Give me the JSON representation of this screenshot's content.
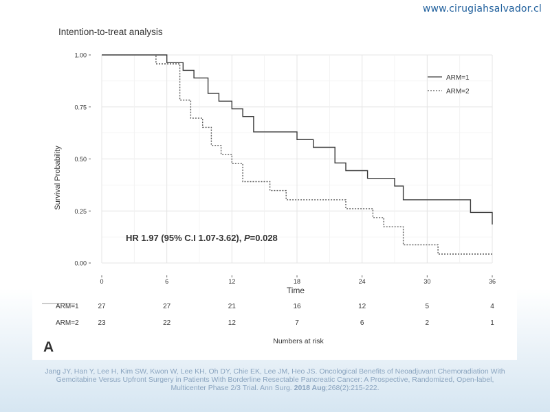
{
  "site_url": "www.cirugiahsalvador.cl",
  "panel_letter": "A",
  "citation": {
    "line1": "Jang JY, Han Y, Lee H, Kim SW, Kwon W, Lee KH, Oh DY, Chie EK, Lee JM, Heo JS. Oncological Benefits of Neoadjuvant Chemoradiation With",
    "line2": "Gemcitabine Versus Upfront Surgery in Patients With Borderline Resectable Pancreatic Cancer: A Prospective, Randomized, Open-label,",
    "line3_a": "Multicenter Phase 2/3 Trial. Ann Surg. ",
    "line3_bold": "2018  Aug",
    "line3_b": ";268(2):215-222."
  },
  "chart_data": {
    "type": "line",
    "title": "Intention-to-treat analysis",
    "xlabel": "Time",
    "ylabel": "Survival Probability",
    "xlim": [
      0,
      36
    ],
    "ylim": [
      0,
      1
    ],
    "x_ticks": [
      "0",
      "6",
      "12",
      "18",
      "24",
      "30",
      "36"
    ],
    "y_ticks": [
      "0.00",
      "0.25",
      "0.50",
      "0.75",
      "1.00"
    ],
    "grid": true,
    "legend_position": "top-right",
    "annotation": {
      "prefix": "HR 1.97 (95% C.I 1.07-3.62), ",
      "p_italic": "P",
      "suffix": "=0.028"
    },
    "series": [
      {
        "name": "ARM=1",
        "style": "solid",
        "color": "#3a3a3a",
        "points": [
          [
            0,
            1.0
          ],
          [
            6,
            1.0
          ],
          [
            6,
            0.963
          ],
          [
            7.5,
            0.963
          ],
          [
            7.5,
            0.926
          ],
          [
            8.5,
            0.926
          ],
          [
            8.5,
            0.889
          ],
          [
            9.8,
            0.889
          ],
          [
            9.8,
            0.815
          ],
          [
            10.8,
            0.815
          ],
          [
            10.8,
            0.778
          ],
          [
            12,
            0.778
          ],
          [
            12,
            0.741
          ],
          [
            13,
            0.741
          ],
          [
            13,
            0.704
          ],
          [
            14,
            0.704
          ],
          [
            14,
            0.63
          ],
          [
            18,
            0.63
          ],
          [
            18,
            0.593
          ],
          [
            19.5,
            0.593
          ],
          [
            19.5,
            0.556
          ],
          [
            21.5,
            0.556
          ],
          [
            21.5,
            0.481
          ],
          [
            22.5,
            0.481
          ],
          [
            22.5,
            0.444
          ],
          [
            24.5,
            0.444
          ],
          [
            24.5,
            0.407
          ],
          [
            27,
            0.407
          ],
          [
            27,
            0.37
          ],
          [
            27.8,
            0.37
          ],
          [
            27.8,
            0.304
          ],
          [
            34,
            0.304
          ],
          [
            34,
            0.243
          ],
          [
            36,
            0.243
          ],
          [
            36,
            0.185
          ]
        ]
      },
      {
        "name": "ARM=2",
        "style": "dashed",
        "color": "#5a5a5a",
        "points": [
          [
            0,
            1.0
          ],
          [
            5,
            1.0
          ],
          [
            5,
            0.957
          ],
          [
            7.2,
            0.957
          ],
          [
            7.2,
            0.783
          ],
          [
            8.2,
            0.783
          ],
          [
            8.2,
            0.696
          ],
          [
            9.3,
            0.696
          ],
          [
            9.3,
            0.652
          ],
          [
            10.1,
            0.652
          ],
          [
            10.1,
            0.565
          ],
          [
            11,
            0.565
          ],
          [
            11,
            0.522
          ],
          [
            12,
            0.522
          ],
          [
            12,
            0.478
          ],
          [
            13,
            0.478
          ],
          [
            13,
            0.391
          ],
          [
            15.5,
            0.391
          ],
          [
            15.5,
            0.348
          ],
          [
            17,
            0.348
          ],
          [
            17,
            0.304
          ],
          [
            22.5,
            0.304
          ],
          [
            22.5,
            0.261
          ],
          [
            25,
            0.261
          ],
          [
            25,
            0.218
          ],
          [
            26,
            0.218
          ],
          [
            26,
            0.174
          ],
          [
            27.8,
            0.174
          ],
          [
            27.8,
            0.087
          ],
          [
            31,
            0.087
          ],
          [
            31,
            0.043
          ],
          [
            36,
            0.043
          ]
        ]
      }
    ],
    "risk_table": {
      "title": "Numbers at risk",
      "rows": [
        {
          "label": "ARM=1",
          "values": [
            "27",
            "27",
            "21",
            "16",
            "12",
            "5",
            "4"
          ]
        },
        {
          "label": "ARM=2",
          "values": [
            "23",
            "22",
            "12",
            "7",
            "6",
            "2",
            "1"
          ]
        }
      ]
    }
  }
}
